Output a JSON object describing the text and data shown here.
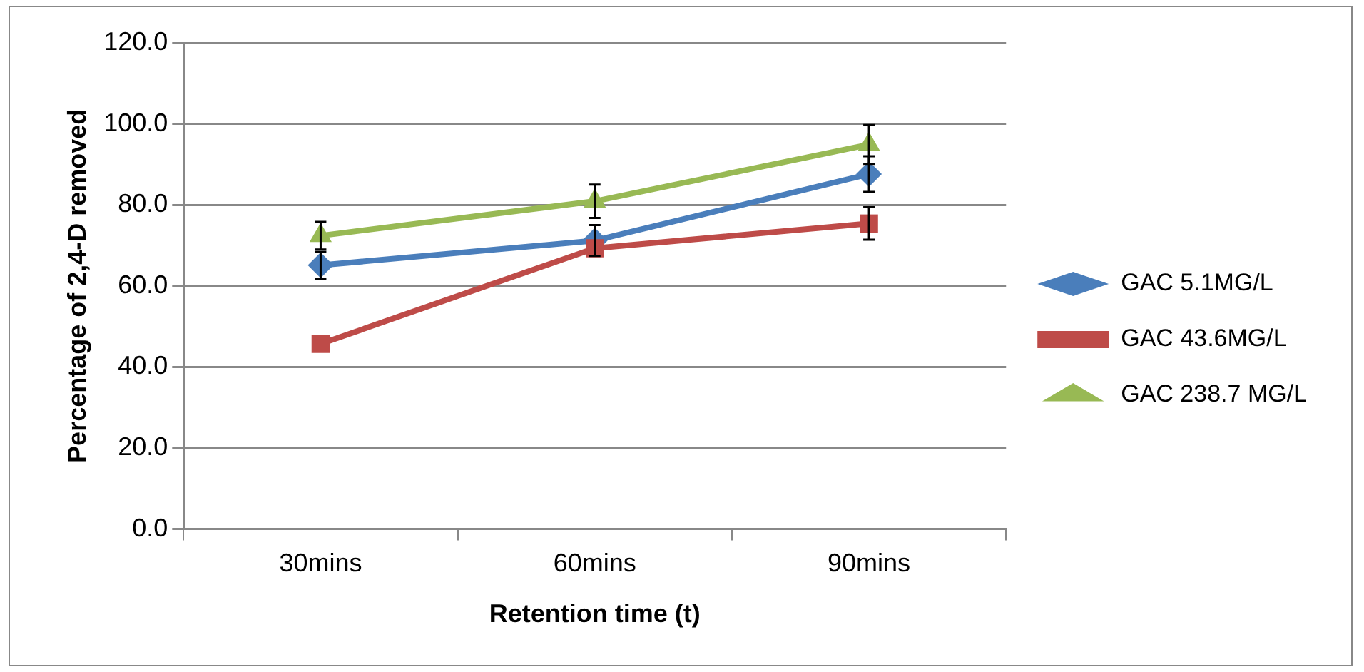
{
  "chart_data": {
    "type": "line",
    "xlabel": "Retention time (t)",
    "ylabel": "Percentage of 2,4-D removed",
    "categories": [
      "30mins",
      "60mins",
      "90mins"
    ],
    "series": [
      {
        "name": "GAC 5.1MG/L",
        "color": "#4a7ebb",
        "values": [
          65.1,
          71.2,
          87.6
        ],
        "errors": [
          3.3,
          3.8,
          4.4
        ],
        "marker": "diamond"
      },
      {
        "name": "GAC 43.6MG/L",
        "color": "#be4b48",
        "values": [
          45.7,
          69.3,
          75.4
        ],
        "errors": [
          null,
          null,
          4.0
        ],
        "marker": "square"
      },
      {
        "name": "GAC 238.7 MG/L",
        "color": "#98b954",
        "values": [
          72.4,
          80.9,
          94.9
        ],
        "errors": [
          3.4,
          4.1,
          4.8
        ],
        "marker": "triangle"
      }
    ],
    "ylim": [
      0,
      120
    ],
    "yticks": [
      {
        "value": 0,
        "label": "0.0"
      },
      {
        "value": 20,
        "label": "20.0"
      },
      {
        "value": 40,
        "label": "40.0"
      },
      {
        "value": 60,
        "label": "60.0"
      },
      {
        "value": 80,
        "label": "80.0"
      },
      {
        "value": 100,
        "label": "100.0"
      },
      {
        "value": 120,
        "label": "120.0"
      }
    ],
    "grid": "y",
    "legend": "right",
    "line_style": "solid"
  }
}
